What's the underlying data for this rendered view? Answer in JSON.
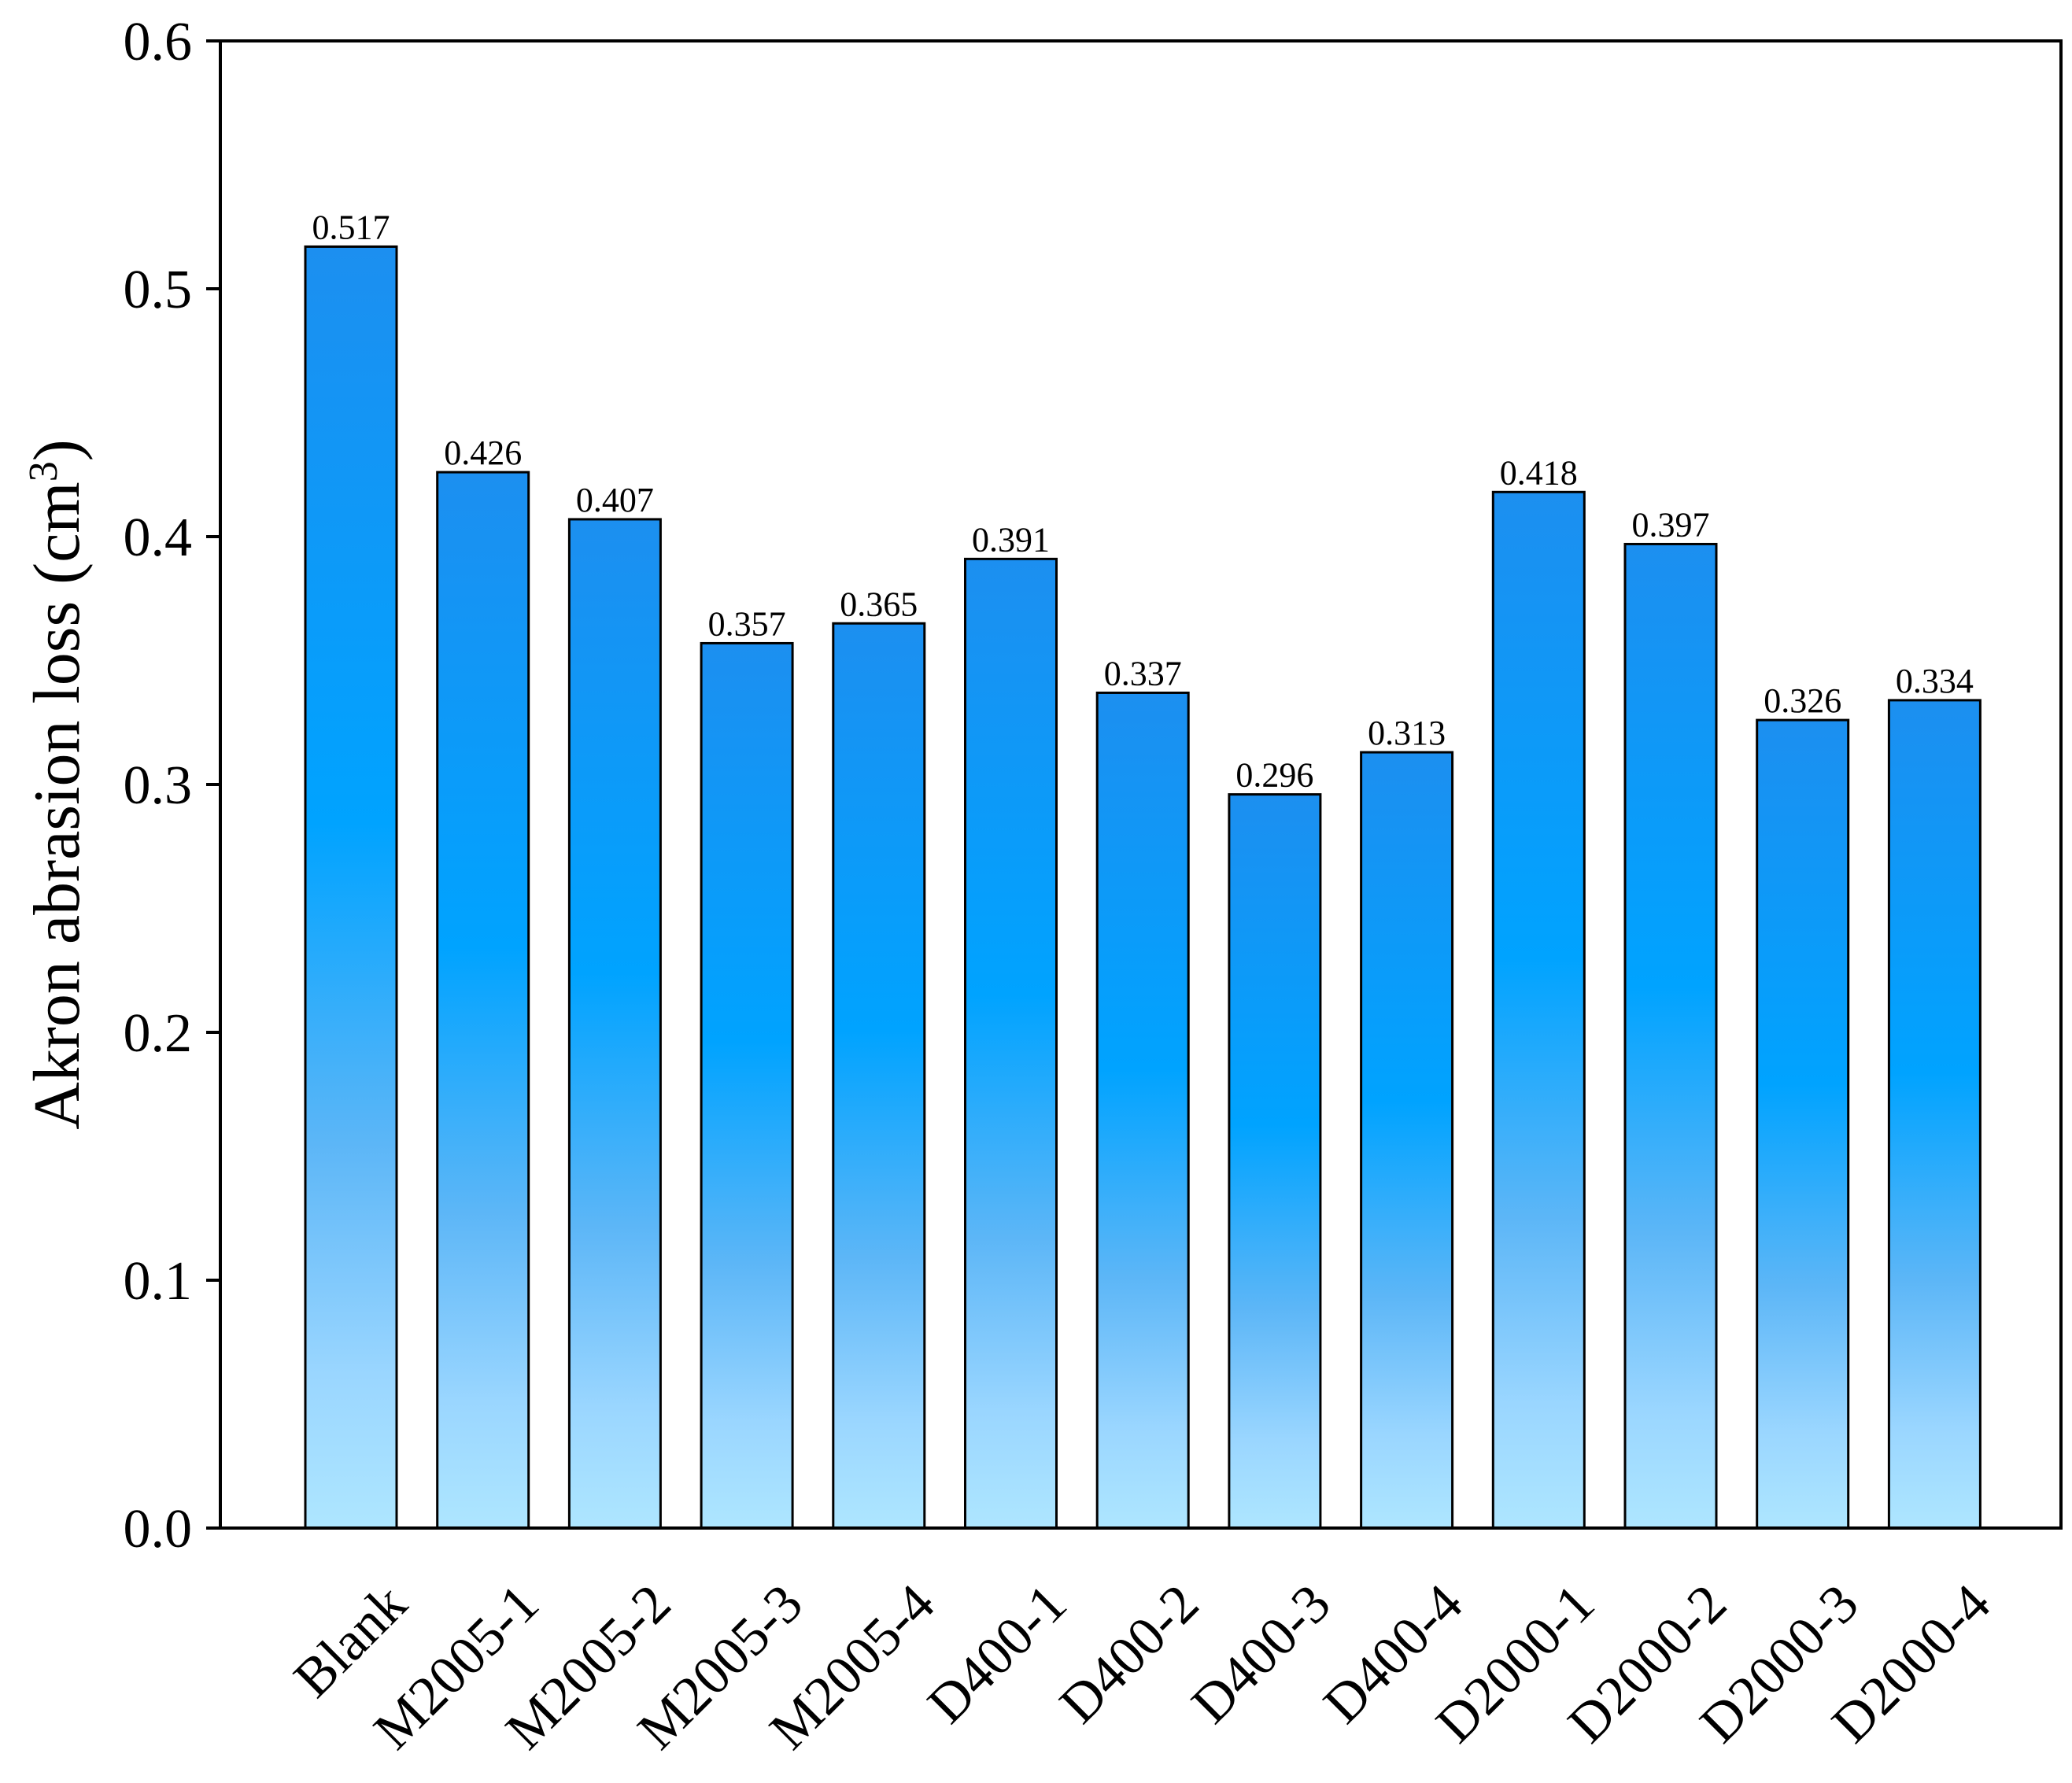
{
  "chart_data": {
    "type": "bar",
    "categories": [
      "Blank",
      "M2005-1",
      "M2005-2",
      "M2005-3",
      "M2005-4",
      "D400-1",
      "D400-2",
      "D400-3",
      "D400-4",
      "D2000-1",
      "D2000-2",
      "D2000-3",
      "D2000-4"
    ],
    "values": [
      0.517,
      0.426,
      0.407,
      0.357,
      0.365,
      0.391,
      0.337,
      0.296,
      0.313,
      0.418,
      0.397,
      0.326,
      0.334
    ],
    "value_labels": [
      "0.517",
      "0.426",
      "0.407",
      "0.357",
      "0.365",
      "0.391",
      "0.337",
      "0.296",
      "0.313",
      "0.418",
      "0.397",
      "0.326",
      "0.334"
    ],
    "title": "",
    "xlabel": "",
    "ylabel": "Akron abrasion loss (cm",
    "ylabel_superscript": "3",
    "ylabel_close": ")",
    "ylim": [
      0.0,
      0.6
    ],
    "yticks": [
      "0.0",
      "0.1",
      "0.2",
      "0.3",
      "0.4",
      "0.5",
      "0.6"
    ],
    "grid": false,
    "legend": "none",
    "colors": {
      "bar_top": "#1e90ff",
      "bar_mid": "#00a2ff",
      "bar_bottom": "#a8e3ff",
      "outline": "#000000"
    }
  }
}
